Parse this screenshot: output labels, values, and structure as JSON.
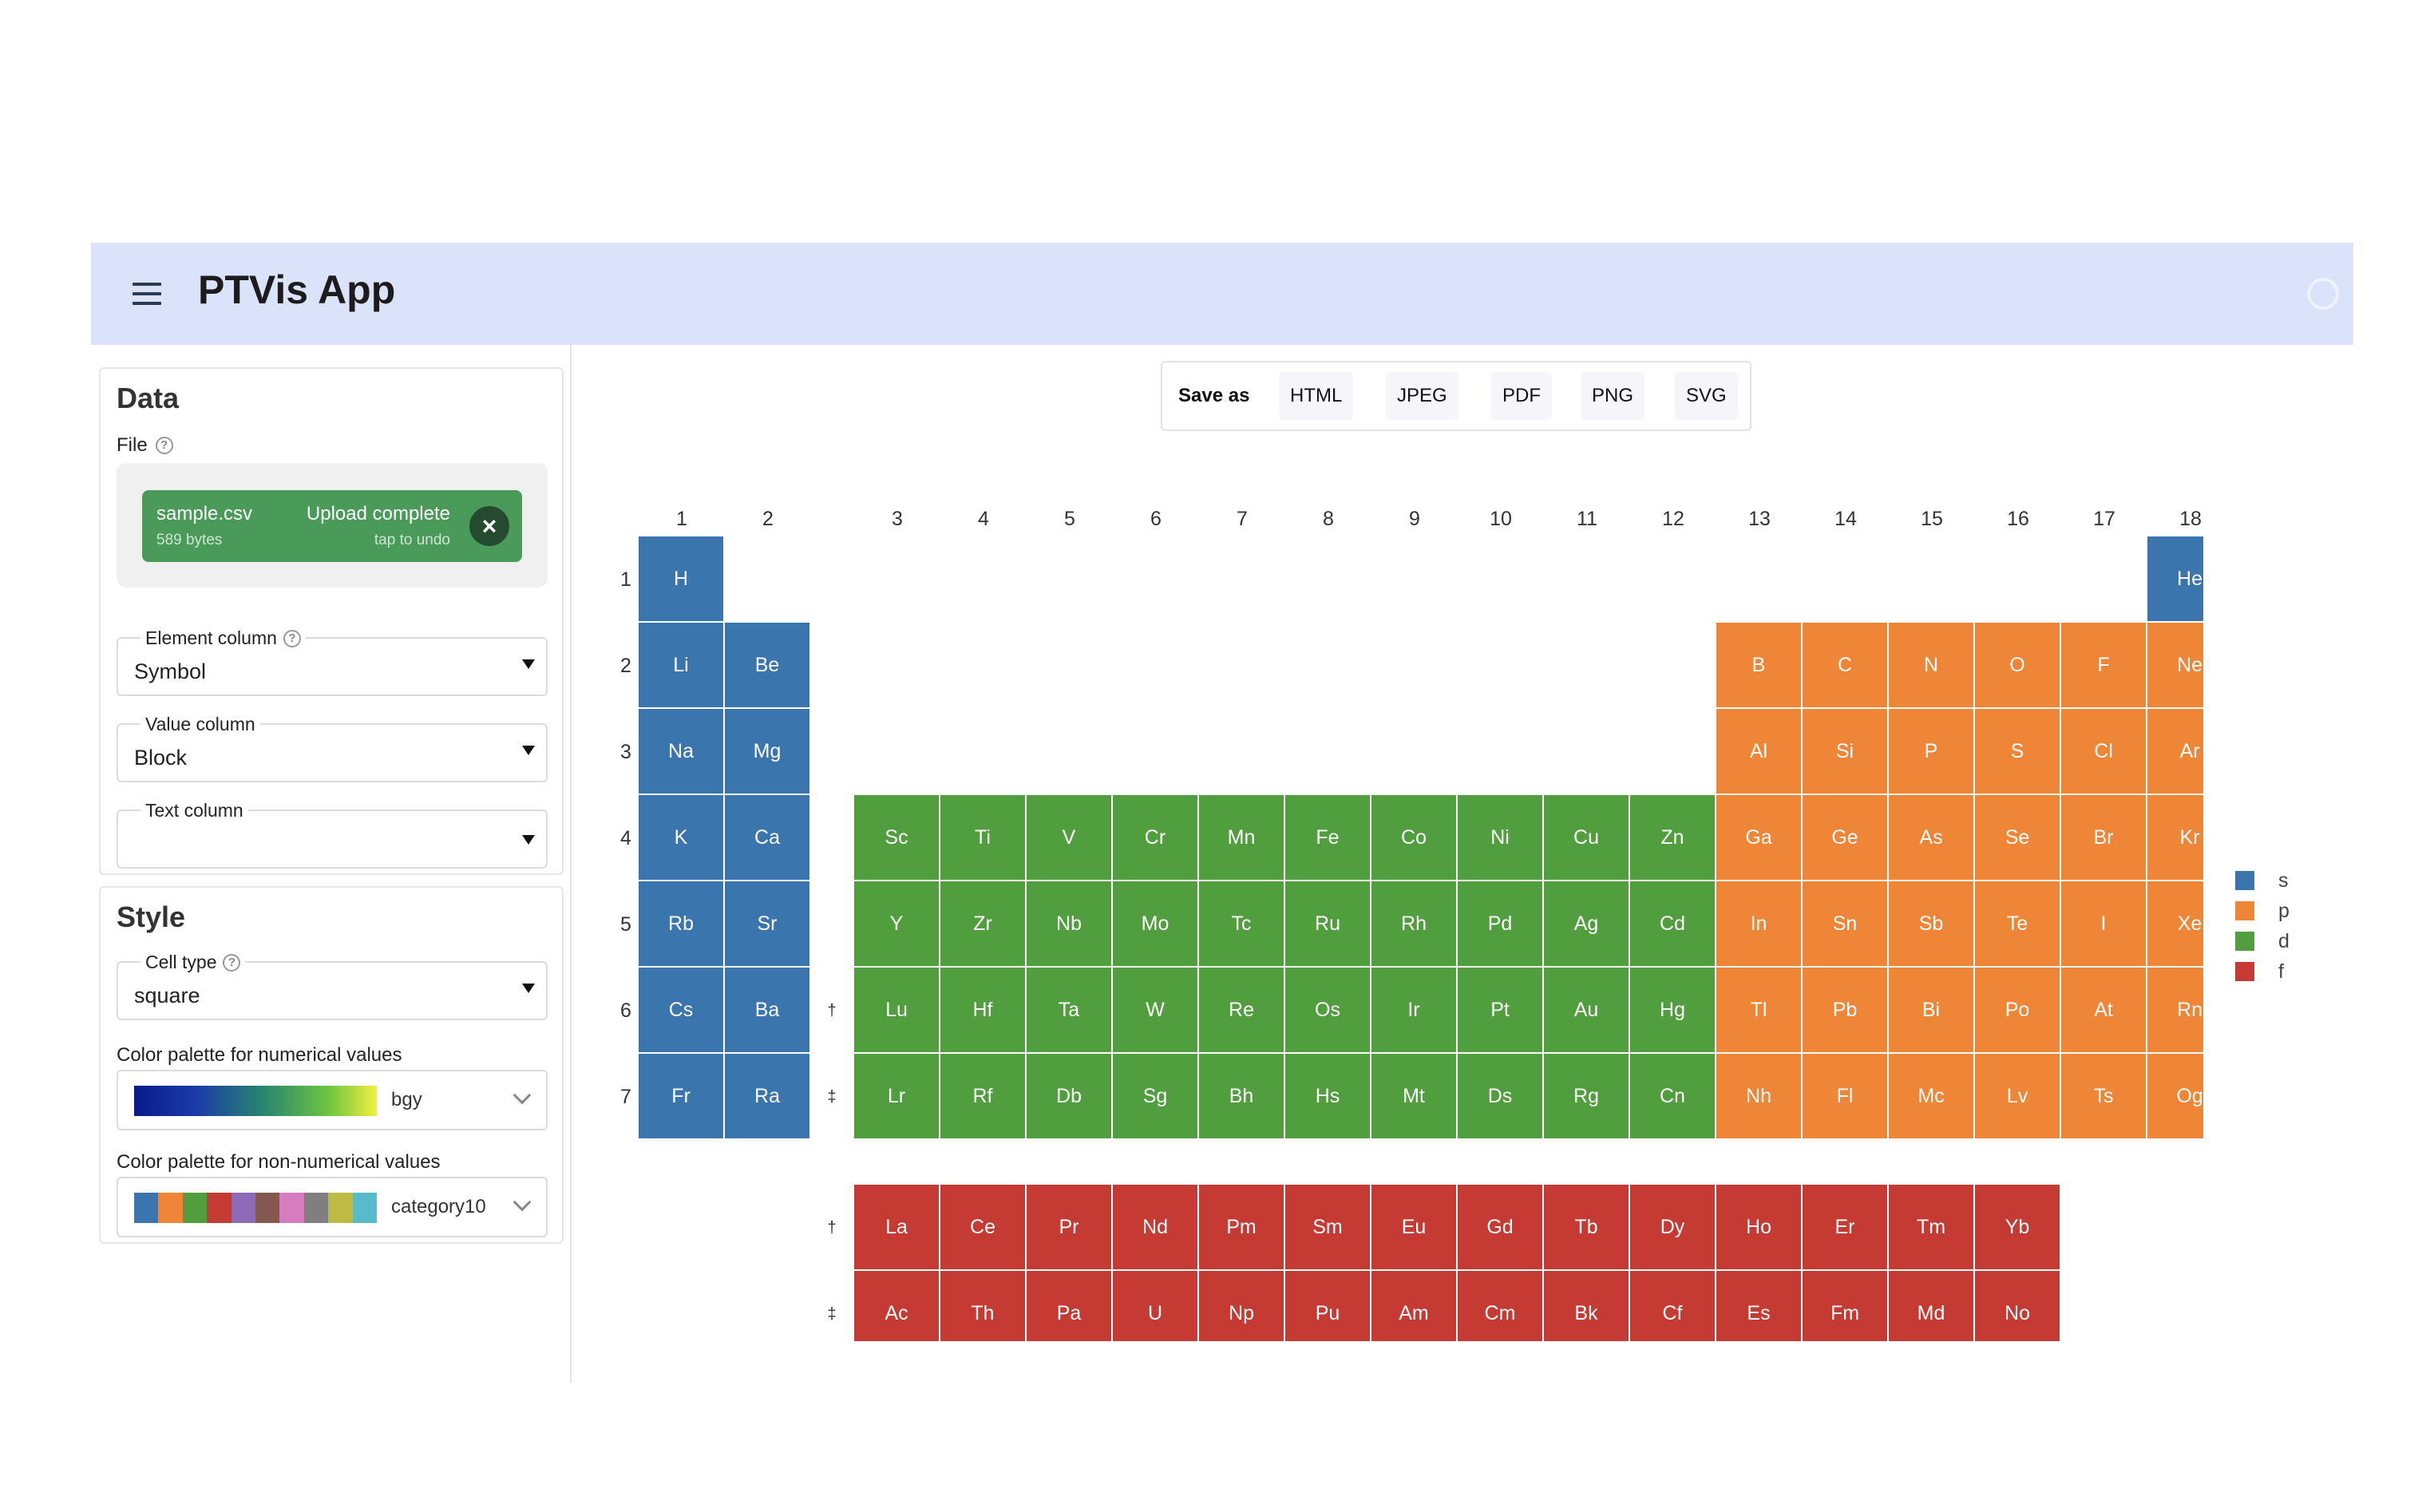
{
  "app": {
    "title": "PTVis App"
  },
  "data_panel": {
    "title": "Data",
    "file_label": "File",
    "upload": {
      "file_name": "sample.csv",
      "file_size": "589 bytes",
      "status": "Upload complete",
      "undo_hint": "tap to undo"
    },
    "element_column": {
      "label": "Element column",
      "value": "Symbol"
    },
    "value_column": {
      "label": "Value column",
      "value": "Block"
    },
    "text_column": {
      "label": "Text column",
      "value": ""
    }
  },
  "style_panel": {
    "title": "Style",
    "cell_type": {
      "label": "Cell type",
      "value": "square"
    },
    "numerical_palette": {
      "label": "Color palette for numerical values",
      "value": "bgy"
    },
    "categorical_palette": {
      "label": "Color palette for non-numerical values",
      "value": "category10",
      "swatches": [
        "#3a75ae",
        "#ef8536",
        "#519e3e",
        "#c53a32",
        "#8d6bb8",
        "#84584e",
        "#d57dbe",
        "#7f7f7f",
        "#bcbc45",
        "#58bbcc"
      ]
    }
  },
  "save_as": {
    "label": "Save as",
    "formats": [
      "HTML",
      "JPEG",
      "PDF",
      "PNG",
      "SVG"
    ]
  },
  "chart_data": {
    "type": "heatmap",
    "title": "",
    "column_labels": [
      "1",
      "2",
      "3",
      "4",
      "5",
      "6",
      "7",
      "8",
      "9",
      "10",
      "11",
      "12",
      "13",
      "14",
      "15",
      "16",
      "17",
      "18"
    ],
    "row_labels": [
      "1",
      "2",
      "3",
      "4",
      "5",
      "6",
      "7"
    ],
    "series_markers": {
      "lanthanide": "†",
      "actinide": "‡"
    },
    "colors": {
      "s": "#3a75ae",
      "p": "#ef8536",
      "d": "#519e3e",
      "f": "#c53a32"
    },
    "legend": [
      "s",
      "p",
      "d",
      "f"
    ],
    "main_table": [
      {
        "period": 1,
        "elements": [
          [
            "H",
            "s",
            1
          ],
          [
            "He",
            "s",
            18
          ]
        ]
      },
      {
        "period": 2,
        "elements": [
          [
            "Li",
            "s",
            1
          ],
          [
            "Be",
            "s",
            2
          ],
          [
            "B",
            "p",
            13
          ],
          [
            "C",
            "p",
            14
          ],
          [
            "N",
            "p",
            15
          ],
          [
            "O",
            "p",
            16
          ],
          [
            "F",
            "p",
            17
          ],
          [
            "Ne",
            "p",
            18
          ]
        ]
      },
      {
        "period": 3,
        "elements": [
          [
            "Na",
            "s",
            1
          ],
          [
            "Mg",
            "s",
            2
          ],
          [
            "Al",
            "p",
            13
          ],
          [
            "Si",
            "p",
            14
          ],
          [
            "P",
            "p",
            15
          ],
          [
            "S",
            "p",
            16
          ],
          [
            "Cl",
            "p",
            17
          ],
          [
            "Ar",
            "p",
            18
          ]
        ]
      },
      {
        "period": 4,
        "elements": [
          [
            "K",
            "s",
            1
          ],
          [
            "Ca",
            "s",
            2
          ],
          [
            "Sc",
            "d",
            3
          ],
          [
            "Ti",
            "d",
            4
          ],
          [
            "V",
            "d",
            5
          ],
          [
            "Cr",
            "d",
            6
          ],
          [
            "Mn",
            "d",
            7
          ],
          [
            "Fe",
            "d",
            8
          ],
          [
            "Co",
            "d",
            9
          ],
          [
            "Ni",
            "d",
            10
          ],
          [
            "Cu",
            "d",
            11
          ],
          [
            "Zn",
            "d",
            12
          ],
          [
            "Ga",
            "p",
            13
          ],
          [
            "Ge",
            "p",
            14
          ],
          [
            "As",
            "p",
            15
          ],
          [
            "Se",
            "p",
            16
          ],
          [
            "Br",
            "p",
            17
          ],
          [
            "Kr",
            "p",
            18
          ]
        ]
      },
      {
        "period": 5,
        "elements": [
          [
            "Rb",
            "s",
            1
          ],
          [
            "Sr",
            "s",
            2
          ],
          [
            "Y",
            "d",
            3
          ],
          [
            "Zr",
            "d",
            4
          ],
          [
            "Nb",
            "d",
            5
          ],
          [
            "Mo",
            "d",
            6
          ],
          [
            "Tc",
            "d",
            7
          ],
          [
            "Ru",
            "d",
            8
          ],
          [
            "Rh",
            "d",
            9
          ],
          [
            "Pd",
            "d",
            10
          ],
          [
            "Ag",
            "d",
            11
          ],
          [
            "Cd",
            "d",
            12
          ],
          [
            "In",
            "p",
            13
          ],
          [
            "Sn",
            "p",
            14
          ],
          [
            "Sb",
            "p",
            15
          ],
          [
            "Te",
            "p",
            16
          ],
          [
            "I",
            "p",
            17
          ],
          [
            "Xe",
            "p",
            18
          ]
        ]
      },
      {
        "period": 6,
        "elements": [
          [
            "Cs",
            "s",
            1
          ],
          [
            "Ba",
            "s",
            2
          ],
          [
            "Lu",
            "d",
            3
          ],
          [
            "Hf",
            "d",
            4
          ],
          [
            "Ta",
            "d",
            5
          ],
          [
            "W",
            "d",
            6
          ],
          [
            "Re",
            "d",
            7
          ],
          [
            "Os",
            "d",
            8
          ],
          [
            "Ir",
            "d",
            9
          ],
          [
            "Pt",
            "d",
            10
          ],
          [
            "Au",
            "d",
            11
          ],
          [
            "Hg",
            "d",
            12
          ],
          [
            "Tl",
            "p",
            13
          ],
          [
            "Pb",
            "p",
            14
          ],
          [
            "Bi",
            "p",
            15
          ],
          [
            "Po",
            "p",
            16
          ],
          [
            "At",
            "p",
            17
          ],
          [
            "Rn",
            "p",
            18
          ]
        ]
      },
      {
        "period": 7,
        "elements": [
          [
            "Fr",
            "s",
            1
          ],
          [
            "Ra",
            "s",
            2
          ],
          [
            "Lr",
            "d",
            3
          ],
          [
            "Rf",
            "d",
            4
          ],
          [
            "Db",
            "d",
            5
          ],
          [
            "Sg",
            "d",
            6
          ],
          [
            "Bh",
            "d",
            7
          ],
          [
            "Hs",
            "d",
            8
          ],
          [
            "Mt",
            "d",
            9
          ],
          [
            "Ds",
            "d",
            10
          ],
          [
            "Rg",
            "d",
            11
          ],
          [
            "Cn",
            "d",
            12
          ],
          [
            "Nh",
            "p",
            13
          ],
          [
            "Fl",
            "p",
            14
          ],
          [
            "Mc",
            "p",
            15
          ],
          [
            "Lv",
            "p",
            16
          ],
          [
            "Ts",
            "p",
            17
          ],
          [
            "Og",
            "p",
            18
          ]
        ]
      }
    ],
    "lanthanides": [
      "La",
      "Ce",
      "Pr",
      "Nd",
      "Pm",
      "Sm",
      "Eu",
      "Gd",
      "Tb",
      "Dy",
      "Ho",
      "Er",
      "Tm",
      "Yb"
    ],
    "actinides": [
      "Ac",
      "Th",
      "Pa",
      "U",
      "Np",
      "Pu",
      "Am",
      "Cm",
      "Bk",
      "Cf",
      "Es",
      "Fm",
      "Md",
      "No"
    ]
  }
}
